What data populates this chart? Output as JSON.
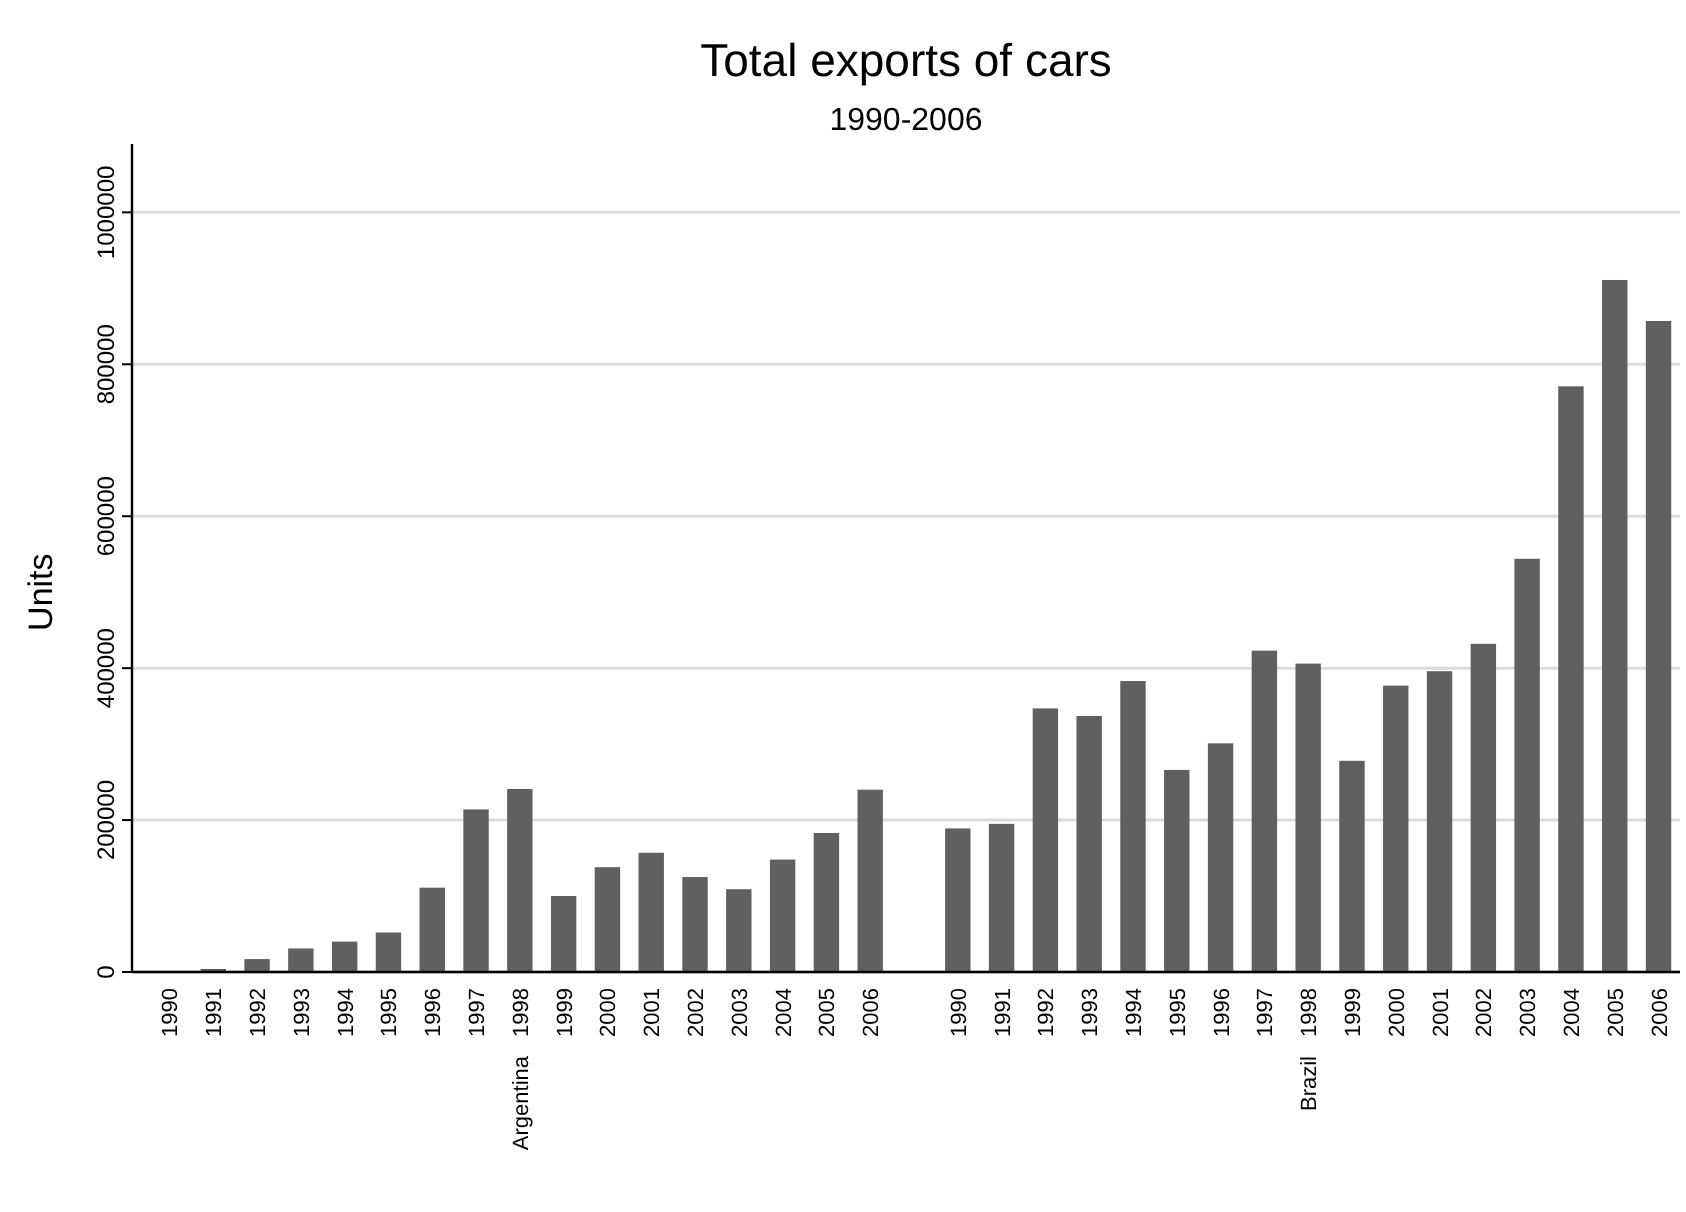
{
  "chart_data": {
    "type": "bar",
    "title": "Total exports of cars",
    "subtitle": "1990-2006",
    "ylabel": "Units",
    "categories": [
      "1990",
      "1991",
      "1992",
      "1993",
      "1994",
      "1995",
      "1996",
      "1997",
      "1998",
      "1999",
      "2000",
      "2001",
      "2002",
      "2003",
      "2004",
      "2005",
      "2006",
      null,
      "1990",
      "1991",
      "1992",
      "1993",
      "1994",
      "1995",
      "1996",
      "1997",
      "1998",
      "1999",
      "2000",
      "2001",
      "2002",
      "2003",
      "2004",
      "2005",
      "2006"
    ],
    "series": [
      {
        "color": "#606060",
        "values": [
          0,
          4000,
          17000,
          31000,
          40000,
          52000,
          111000,
          214000,
          241000,
          100000,
          138000,
          157000,
          125000,
          109000,
          148000,
          183000,
          240000,
          null,
          189000,
          195000,
          347000,
          337000,
          383000,
          266000,
          301000,
          423000,
          406000,
          278000,
          377000,
          396000,
          432000,
          544000,
          771000,
          911000,
          857000
        ]
      }
    ],
    "annotations": [
      "Argentina",
      "Brazil"
    ],
    "ylim": [
      0,
      1090000
    ],
    "yticks": [
      0,
      200000,
      400000,
      600000,
      800000,
      1000000
    ],
    "grid": "y"
  }
}
